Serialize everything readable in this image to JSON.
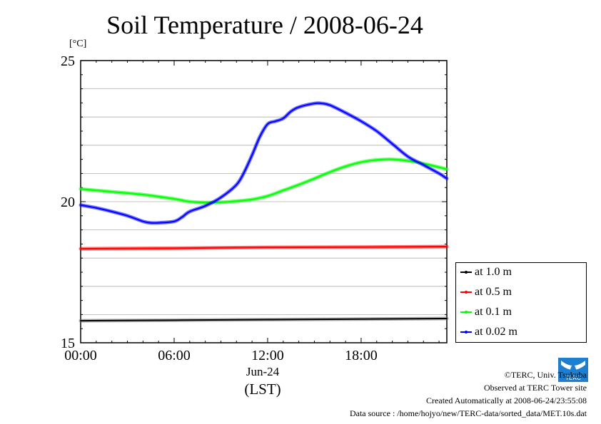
{
  "title": "Soil Temperature / 2008-06-24",
  "unit_label": "[°C]",
  "x_sub_label": "Jun-24",
  "x_timezone_label": "(LST)",
  "footer": {
    "copyright": "©TERC, Univ. Tsukuba",
    "site": "Observed at TERC Tower site",
    "created": "Created Automatically at 2008-06-24/23:55:08",
    "source": "Data source : /home/hojyo/new/TERC-data/sorted_data/MET.10s.dat"
  },
  "logo_text": "TERC",
  "legend": [
    {
      "label": "at 1.0 m",
      "color": "#000000"
    },
    {
      "label": "at 0.5 m",
      "color": "#ff0000"
    },
    {
      "label": "at 0.1 m",
      "color": "#00ff00"
    },
    {
      "label": "at 0.02 m",
      "color": "#0000ff"
    }
  ],
  "chart_data": {
    "type": "line",
    "title": "Soil Temperature / 2008-06-24",
    "ylabel": "[°C]",
    "xlabel": "(LST)",
    "xlim": [
      0,
      23.5
    ],
    "ylim": [
      15,
      25
    ],
    "x_ticks": [
      0,
      6,
      12,
      18
    ],
    "x_tick_labels": [
      "00:00",
      "06:00",
      "12:00",
      "18:00"
    ],
    "y_ticks": [
      15,
      20,
      25
    ],
    "y_tick_labels": [
      "15",
      "20",
      "25"
    ],
    "grid": "horizontal",
    "legend_position": "bottom-right outside",
    "series": [
      {
        "name": "at 1.0 m",
        "color": "#000000",
        "x": [
          0,
          6,
          12,
          18,
          23.5
        ],
        "y": [
          15.78,
          15.8,
          15.82,
          15.84,
          15.86
        ]
      },
      {
        "name": "at 0.5 m",
        "color": "#ff0000",
        "x": [
          0,
          6,
          12,
          18,
          23.5
        ],
        "y": [
          18.33,
          18.35,
          18.38,
          18.39,
          18.41
        ]
      },
      {
        "name": "at 0.1 m",
        "color": "#00ff00",
        "x": [
          0,
          2,
          4,
          6,
          7,
          8,
          9,
          10,
          11,
          12,
          13,
          14,
          15,
          16,
          17,
          18,
          19,
          20,
          21,
          22,
          23,
          23.5
        ],
        "y": [
          20.45,
          20.35,
          20.25,
          20.1,
          20.0,
          19.97,
          19.98,
          20.02,
          20.08,
          20.2,
          20.4,
          20.6,
          20.82,
          21.05,
          21.25,
          21.4,
          21.48,
          21.5,
          21.45,
          21.35,
          21.22,
          21.15
        ]
      },
      {
        "name": "at 0.02 m",
        "color": "#0000ff",
        "x": [
          0,
          1,
          2,
          3,
          4,
          4.5,
          5,
          6,
          6.5,
          7,
          8,
          9,
          10,
          10.5,
          11,
          11.5,
          12,
          12.5,
          13,
          13.5,
          14,
          15,
          15.5,
          16,
          17,
          18,
          19,
          20,
          21,
          22,
          23,
          23.5
        ],
        "y": [
          19.88,
          19.78,
          19.65,
          19.5,
          19.3,
          19.25,
          19.25,
          19.3,
          19.45,
          19.65,
          19.85,
          20.15,
          20.6,
          21.05,
          21.65,
          22.3,
          22.75,
          22.85,
          22.95,
          23.2,
          23.35,
          23.48,
          23.48,
          23.42,
          23.15,
          22.85,
          22.5,
          22.05,
          21.6,
          21.3,
          21.0,
          20.82
        ]
      }
    ]
  }
}
